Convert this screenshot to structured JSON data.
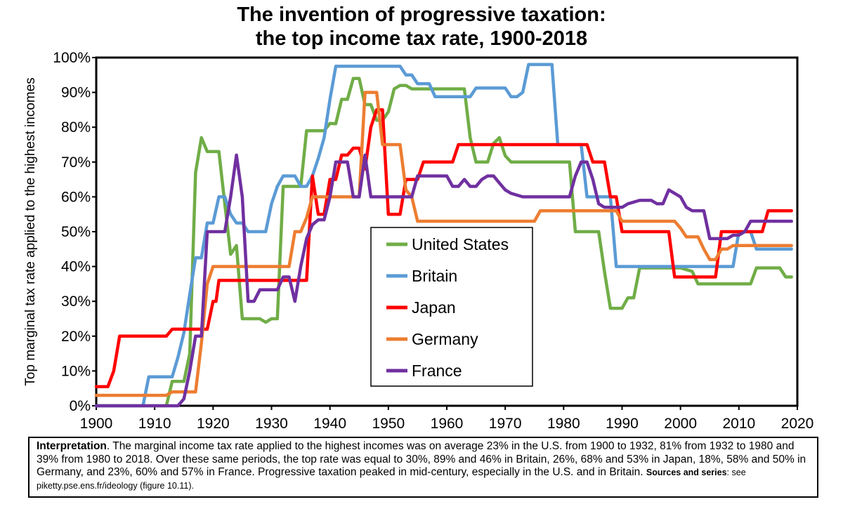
{
  "title_line1": "The invention of progressive taxation:",
  "title_line2": "the top income tax rate, 1900-2018",
  "note": {
    "interp_label": "Interpretation",
    "text": ". The marginal income tax rate applied to the highest incomes was on average 23% in the U.S. from 1900 to 1932, 81% from 1932 to 1980 and 39% from 1980 to 2018. Over these same periods, the top rate was equal to 30%, 89% and 46% in Britain, 26%, 68% and 53% in Japan, 18%, 58% and 50% in Germany, and 23%, 60% and 57% in France. Progressive taxation peaked in mid-century, especially in the U.S. and in Britain.",
    "sources_label": "Sources and series",
    "sources_text": ": see piketty.pse.ens.fr/ideology (figure 10.11)."
  },
  "chart_data": {
    "type": "line",
    "title": "The invention of progressive taxation: the top income tax rate, 1900-2018",
    "xlabel": "",
    "ylabel": "Top marginal tax rate applied to the highest incomes",
    "xlim": [
      1900,
      2020
    ],
    "ylim": [
      0,
      100
    ],
    "x_ticks": [
      1900,
      1910,
      1920,
      1930,
      1940,
      1950,
      1960,
      1970,
      1980,
      1990,
      2000,
      2010,
      2020
    ],
    "y_ticks": [
      "0%",
      "10%",
      "20%",
      "30%",
      "40%",
      "50%",
      "60%",
      "70%",
      "80%",
      "90%",
      "100%"
    ],
    "grid": false,
    "legend_position": "center",
    "series": [
      {
        "name": "United States",
        "color": "#70ad47",
        "points": [
          [
            1900,
            0
          ],
          [
            1912,
            0
          ],
          [
            1913,
            7
          ],
          [
            1914,
            7
          ],
          [
            1915,
            7
          ],
          [
            1916,
            15
          ],
          [
            1917,
            67
          ],
          [
            1918,
            77
          ],
          [
            1919,
            73
          ],
          [
            1920,
            73
          ],
          [
            1921,
            73
          ],
          [
            1922,
            58
          ],
          [
            1923,
            43.5
          ],
          [
            1924,
            46
          ],
          [
            1925,
            25
          ],
          [
            1928,
            25
          ],
          [
            1929,
            24
          ],
          [
            1930,
            25
          ],
          [
            1931,
            25
          ],
          [
            1932,
            63
          ],
          [
            1935,
            63
          ],
          [
            1936,
            79
          ],
          [
            1939,
            79
          ],
          [
            1940,
            81.1
          ],
          [
            1941,
            81
          ],
          [
            1942,
            88
          ],
          [
            1943,
            88
          ],
          [
            1944,
            94
          ],
          [
            1945,
            94
          ],
          [
            1946,
            86.5
          ],
          [
            1947,
            86.5
          ],
          [
            1948,
            82
          ],
          [
            1949,
            82
          ],
          [
            1950,
            84.4
          ],
          [
            1951,
            91
          ],
          [
            1952,
            92
          ],
          [
            1953,
            92
          ],
          [
            1954,
            91
          ],
          [
            1963,
            91
          ],
          [
            1964,
            77
          ],
          [
            1965,
            70
          ],
          [
            1967,
            70
          ],
          [
            1968,
            75.3
          ],
          [
            1969,
            77
          ],
          [
            1970,
            71.8
          ],
          [
            1971,
            70
          ],
          [
            1981,
            70
          ],
          [
            1982,
            50
          ],
          [
            1986,
            50
          ],
          [
            1987,
            38.5
          ],
          [
            1988,
            28
          ],
          [
            1990,
            28
          ],
          [
            1991,
            31
          ],
          [
            1992,
            31
          ],
          [
            1993,
            39.6
          ],
          [
            2000,
            39.6
          ],
          [
            2001,
            39.1
          ],
          [
            2002,
            38.6
          ],
          [
            2003,
            35
          ],
          [
            2012,
            35
          ],
          [
            2013,
            39.6
          ],
          [
            2017,
            39.6
          ],
          [
            2018,
            37
          ],
          [
            2019,
            37
          ]
        ]
      },
      {
        "name": "Britain",
        "color": "#5b9bd5",
        "points": [
          [
            1900,
            0
          ],
          [
            1908,
            0
          ],
          [
            1909,
            8.3
          ],
          [
            1913,
            8.3
          ],
          [
            1914,
            14
          ],
          [
            1915,
            21
          ],
          [
            1916,
            32
          ],
          [
            1917,
            42.5
          ],
          [
            1918,
            42.5
          ],
          [
            1919,
            52.5
          ],
          [
            1920,
            52.5
          ],
          [
            1921,
            60
          ],
          [
            1922,
            60
          ],
          [
            1923,
            55
          ],
          [
            1924,
            52.5
          ],
          [
            1925,
            52.5
          ],
          [
            1926,
            50
          ],
          [
            1929,
            50
          ],
          [
            1930,
            58
          ],
          [
            1931,
            63
          ],
          [
            1932,
            66
          ],
          [
            1934,
            66
          ],
          [
            1935,
            63
          ],
          [
            1936,
            63
          ],
          [
            1937,
            66
          ],
          [
            1938,
            71
          ],
          [
            1939,
            77
          ],
          [
            1940,
            88
          ],
          [
            1941,
            97.5
          ],
          [
            1952,
            97.5
          ],
          [
            1953,
            95
          ],
          [
            1954,
            95
          ],
          [
            1955,
            92.5
          ],
          [
            1957,
            92.5
          ],
          [
            1958,
            88.75
          ],
          [
            1964,
            88.75
          ],
          [
            1965,
            91.25
          ],
          [
            1969,
            91.25
          ],
          [
            1970,
            91.25
          ],
          [
            1971,
            88.75
          ],
          [
            1972,
            88.75
          ],
          [
            1973,
            90
          ],
          [
            1974,
            98
          ],
          [
            1978,
            98
          ],
          [
            1979,
            75
          ],
          [
            1983,
            75
          ],
          [
            1984,
            60
          ],
          [
            1988,
            60
          ],
          [
            1989,
            40
          ],
          [
            2009,
            40
          ],
          [
            2010,
            50
          ],
          [
            2012,
            50
          ],
          [
            2013,
            45
          ],
          [
            2019,
            45
          ]
        ]
      },
      {
        "name": "Japan",
        "color": "#ff0000",
        "points": [
          [
            1900,
            5.5
          ],
          [
            1902,
            5.5
          ],
          [
            1903,
            10
          ],
          [
            1904,
            20
          ],
          [
            1912,
            20
          ],
          [
            1913,
            22
          ],
          [
            1919,
            22
          ],
          [
            1920,
            30
          ],
          [
            1920.5,
            30
          ],
          [
            1921,
            36
          ],
          [
            1935,
            36
          ],
          [
            1936,
            36
          ],
          [
            1937,
            66
          ],
          [
            1938,
            55
          ],
          [
            1939,
            55
          ],
          [
            1940,
            65
          ],
          [
            1941,
            65
          ],
          [
            1942,
            72
          ],
          [
            1943,
            72
          ],
          [
            1944,
            74
          ],
          [
            1945,
            74
          ],
          [
            1946,
            68
          ],
          [
            1947,
            80
          ],
          [
            1948,
            85
          ],
          [
            1949,
            85
          ],
          [
            1950,
            55
          ],
          [
            1952,
            55
          ],
          [
            1953,
            65
          ],
          [
            1955,
            65
          ],
          [
            1956,
            70
          ],
          [
            1961,
            70
          ],
          [
            1962,
            75
          ],
          [
            1984,
            75
          ],
          [
            1985,
            70
          ],
          [
            1987,
            70
          ],
          [
            1988,
            60
          ],
          [
            1989,
            60
          ],
          [
            1990,
            50
          ],
          [
            1998,
            50
          ],
          [
            1999,
            37
          ],
          [
            2006,
            37
          ],
          [
            2007,
            50
          ],
          [
            2014,
            50
          ],
          [
            2015,
            56
          ],
          [
            2019,
            56
          ]
        ]
      },
      {
        "name": "Germany",
        "color": "#ed7d31",
        "points": [
          [
            1900,
            3
          ],
          [
            1912,
            3
          ],
          [
            1913,
            4
          ],
          [
            1917,
            4
          ],
          [
            1918,
            18
          ],
          [
            1919,
            35
          ],
          [
            1920,
            40
          ],
          [
            1933,
            40
          ],
          [
            1934,
            50
          ],
          [
            1935,
            50
          ],
          [
            1936,
            54
          ],
          [
            1937,
            60
          ],
          [
            1945,
            60
          ],
          [
            1946,
            90
          ],
          [
            1948,
            90
          ],
          [
            1949,
            75
          ],
          [
            1952,
            75
          ],
          [
            1953,
            62
          ],
          [
            1954,
            60
          ],
          [
            1955,
            53
          ],
          [
            1975,
            53
          ],
          [
            1976,
            56
          ],
          [
            1989,
            56
          ],
          [
            1990,
            53
          ],
          [
            1999,
            53
          ],
          [
            2000,
            51
          ],
          [
            2001,
            48.5
          ],
          [
            2003,
            48.5
          ],
          [
            2004,
            45
          ],
          [
            2005,
            42
          ],
          [
            2006,
            42
          ],
          [
            2007,
            45
          ],
          [
            2008,
            45
          ],
          [
            2009,
            46
          ],
          [
            2019,
            46
          ]
        ]
      },
      {
        "name": "France",
        "color": "#7030a0",
        "points": [
          [
            1900,
            0
          ],
          [
            1914,
            0
          ],
          [
            1915,
            2
          ],
          [
            1916,
            10
          ],
          [
            1917,
            20
          ],
          [
            1918,
            20
          ],
          [
            1919,
            50
          ],
          [
            1920,
            50
          ],
          [
            1922,
            50
          ],
          [
            1923,
            60
          ],
          [
            1924,
            72
          ],
          [
            1925,
            60
          ],
          [
            1926,
            30
          ],
          [
            1927,
            30
          ],
          [
            1928,
            33.3
          ],
          [
            1931,
            33.3
          ],
          [
            1932,
            37
          ],
          [
            1933,
            37
          ],
          [
            1934,
            30
          ],
          [
            1935,
            40
          ],
          [
            1936,
            48
          ],
          [
            1937,
            52
          ],
          [
            1938,
            53.4
          ],
          [
            1939,
            53.4
          ],
          [
            1940,
            60
          ],
          [
            1941,
            70
          ],
          [
            1943,
            70
          ],
          [
            1944,
            60
          ],
          [
            1945,
            60
          ],
          [
            1946,
            72
          ],
          [
            1947,
            60
          ],
          [
            1954,
            60
          ],
          [
            1955,
            66
          ],
          [
            1960,
            66
          ],
          [
            1961,
            63
          ],
          [
            1962,
            63
          ],
          [
            1963,
            65
          ],
          [
            1964,
            63
          ],
          [
            1965,
            63
          ],
          [
            1966,
            65
          ],
          [
            1967,
            66
          ],
          [
            1968,
            66
          ],
          [
            1969,
            64
          ],
          [
            1970,
            62
          ],
          [
            1971,
            61
          ],
          [
            1973,
            60
          ],
          [
            1981,
            60
          ],
          [
            1982,
            66
          ],
          [
            1983,
            70
          ],
          [
            1984,
            70
          ],
          [
            1985,
            65
          ],
          [
            1986,
            58
          ],
          [
            1987,
            57
          ],
          [
            1989,
            57
          ],
          [
            1990,
            57
          ],
          [
            1991,
            58
          ],
          [
            1993,
            59
          ],
          [
            1995,
            59
          ],
          [
            1996,
            58
          ],
          [
            1997,
            58
          ],
          [
            1998,
            62
          ],
          [
            1999,
            61
          ],
          [
            2000,
            60
          ],
          [
            2001,
            57
          ],
          [
            2002,
            56
          ],
          [
            2004,
            56
          ],
          [
            2005,
            48
          ],
          [
            2008,
            48
          ],
          [
            2009,
            49
          ],
          [
            2010,
            49
          ],
          [
            2011,
            50
          ],
          [
            2012,
            53
          ],
          [
            2019,
            53
          ]
        ]
      }
    ]
  }
}
